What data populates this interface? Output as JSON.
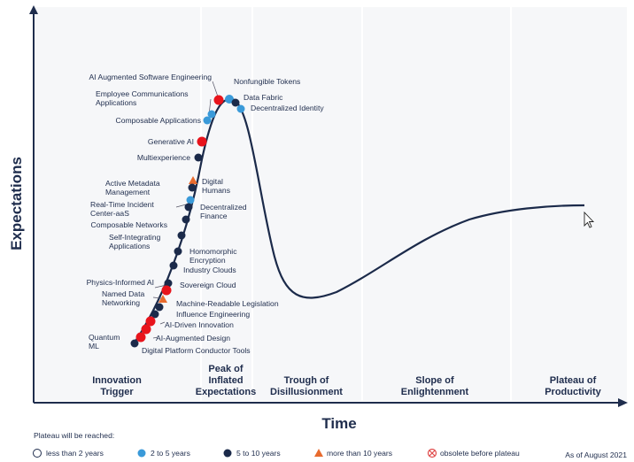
{
  "colors": {
    "navy": "#1b2a4a",
    "axis": "#1f2d4d",
    "light_blue": "#3a9ad9",
    "dark_blue": "#1b2a4a",
    "red": "#e8141c",
    "orange": "#e86b2e",
    "obsolete": "#e04a4a",
    "shading": "#f5f6f8"
  },
  "axes": {
    "y_label": "Expectations",
    "x_label": "Time"
  },
  "phases": [
    {
      "lines": [
        "Innovation",
        "Trigger"
      ]
    },
    {
      "lines": [
        "Peak of",
        "Inflated",
        "Expectations"
      ]
    },
    {
      "lines": [
        "Trough of",
        "Disillusionment"
      ]
    },
    {
      "lines": [
        "Slope of",
        "Enlightenment"
      ]
    },
    {
      "lines": [
        "Plateau of",
        "Productivity"
      ]
    }
  ],
  "technologies": [
    {
      "label": [
        "AI Augmented Software Engineering"
      ],
      "plateau": "less than 2 years"
    },
    {
      "label": [
        "Nonfungible Tokens"
      ],
      "plateau": "2 to 5 years"
    },
    {
      "label": [
        "Data Fabric"
      ],
      "plateau": "5 to 10 years"
    },
    {
      "label": [
        "Decentralized Identity"
      ],
      "plateau": "2 to 5 years"
    },
    {
      "label": [
        "Employee Communications",
        "Applications"
      ],
      "plateau": "2 to 5 years"
    },
    {
      "label": [
        "Composable Applications"
      ],
      "plateau": "2 to 5 years"
    },
    {
      "label": [
        "Generative AI"
      ],
      "plateau": "less than 2 years"
    },
    {
      "label": [
        "Multiexperience"
      ],
      "plateau": "5 to 10 years"
    },
    {
      "label": [
        "Digital",
        "Humans"
      ],
      "plateau": "more than 10 years"
    },
    {
      "label": [
        "Active Metadata",
        "Management"
      ],
      "plateau": "5 to 10 years"
    },
    {
      "label": [
        "Real-Time Incident",
        "Center-aaS"
      ],
      "plateau": "2 to 5 years"
    },
    {
      "label": [
        "Decentralized",
        "Finance"
      ],
      "plateau": "5 to 10 years"
    },
    {
      "label": [
        "Composable Networks"
      ],
      "plateau": "5 to 10 years"
    },
    {
      "label": [
        "Self-Integrating",
        "Applications"
      ],
      "plateau": "5 to 10 years"
    },
    {
      "label": [
        "Homomorphic",
        "Encryption"
      ],
      "plateau": "5 to 10 years"
    },
    {
      "label": [
        "Industry Clouds"
      ],
      "plateau": "5 to 10 years"
    },
    {
      "label": [
        "Physics-Informed AI"
      ],
      "plateau": "5 to 10 years"
    },
    {
      "label": [
        "Sovereign Cloud"
      ],
      "plateau": "less than 2 years"
    },
    {
      "label": [
        "Named Data",
        "Networking"
      ],
      "plateau": "more than 10 years"
    },
    {
      "label": [
        "Machine-Readable Legislation"
      ],
      "plateau": "5 to 10 years"
    },
    {
      "label": [
        "Influence Engineering"
      ],
      "plateau": "5 to 10 years"
    },
    {
      "label": [
        "AI-Driven Innovation"
      ],
      "plateau": "less than 2 years"
    },
    {
      "label": [
        "Quantum",
        "ML"
      ],
      "plateau": "less than 2 years"
    },
    {
      "label": [
        "AI-Augmented Design"
      ],
      "plateau": "less than 2 years"
    },
    {
      "label": [
        "Digital Platform Conductor Tools"
      ],
      "plateau": "5 to 10 years"
    }
  ],
  "legend": {
    "title": "Plateau will be reached:",
    "items": [
      {
        "label": "less than 2 years",
        "marker": "hollow-circle"
      },
      {
        "label": "2 to 5 years",
        "marker": "light-blue-dot"
      },
      {
        "label": "5 to 10 years",
        "marker": "dark-blue-dot"
      },
      {
        "label": "more than 10 years",
        "marker": "orange-triangle"
      },
      {
        "label": "obsolete before plateau",
        "marker": "crossed-circle"
      }
    ],
    "as_of": "As of August 2021"
  }
}
